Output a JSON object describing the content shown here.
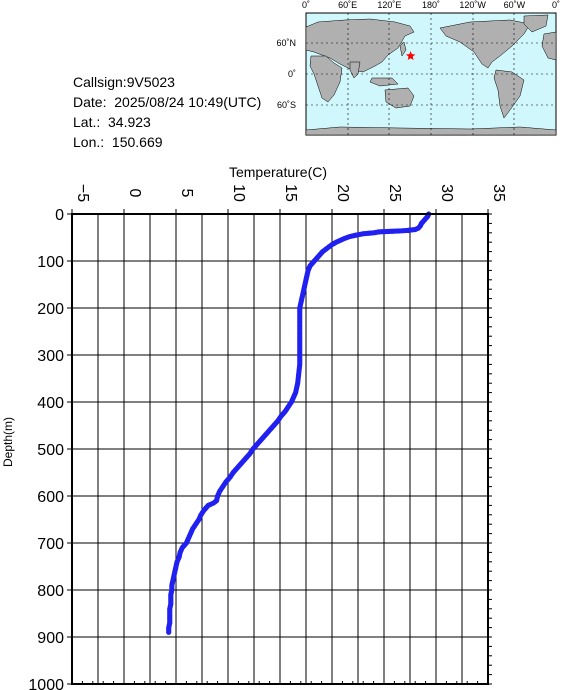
{
  "header": {
    "callsign": "Callsign:9V5023",
    "date": "Date:  2025/08/24 10:49(UTC)",
    "lat": "Lat.:  34.923",
    "lon": "Lon.:  150.669"
  },
  "map": {
    "lon_labels": [
      "0˚",
      "60˚E",
      "120˚E",
      "180˚",
      "120˚W",
      "60˚W",
      "0˚"
    ],
    "lat_labels": [
      "60˚N",
      "0˚",
      "60˚S"
    ],
    "station": {
      "lat": 34.923,
      "lon": 150.669
    },
    "colors": {
      "ocean": "#d0f7fb",
      "land": "#b0b0b0",
      "marker": "#ff0000"
    }
  },
  "chart_data": {
    "type": "scatter",
    "xlabel": "Temperature(C)",
    "ylabel": "Depth(m)",
    "xlim": [
      -5,
      35
    ],
    "ylim": [
      1000,
      0
    ],
    "x_ticks": [
      "-5",
      "0",
      "5",
      "10",
      "15",
      "20",
      "25",
      "30",
      "35"
    ],
    "y_ticks": [
      "0",
      "100",
      "200",
      "300",
      "400",
      "500",
      "600",
      "700",
      "800",
      "900",
      "1000"
    ],
    "grid": true,
    "color": "#2020f0",
    "series": [
      {
        "points": [
          [
            29.3,
            0
          ],
          [
            29.2,
            5
          ],
          [
            29.0,
            10
          ],
          [
            28.8,
            15
          ],
          [
            28.6,
            20
          ],
          [
            28.5,
            25
          ],
          [
            28.3,
            30
          ],
          [
            28.0,
            33
          ],
          [
            27.2,
            35
          ],
          [
            26.5,
            36
          ],
          [
            25.5,
            37
          ],
          [
            24.5,
            38
          ],
          [
            24.0,
            40
          ],
          [
            23.0,
            42
          ],
          [
            22.3,
            45
          ],
          [
            21.7,
            48
          ],
          [
            21.2,
            52
          ],
          [
            20.8,
            56
          ],
          [
            20.4,
            60
          ],
          [
            20.0,
            65
          ],
          [
            19.7,
            70
          ],
          [
            19.4,
            75
          ],
          [
            19.1,
            80
          ],
          [
            18.9,
            85
          ],
          [
            18.7,
            90
          ],
          [
            18.5,
            95
          ],
          [
            18.3,
            100
          ],
          [
            18.1,
            105
          ],
          [
            17.9,
            110
          ],
          [
            17.8,
            115
          ],
          [
            17.7,
            120
          ],
          [
            17.6,
            130
          ],
          [
            17.5,
            140
          ],
          [
            17.4,
            150
          ],
          [
            17.3,
            160
          ],
          [
            17.2,
            170
          ],
          [
            17.1,
            180
          ],
          [
            17.0,
            190
          ],
          [
            16.9,
            200
          ],
          [
            16.9,
            220
          ],
          [
            16.9,
            240
          ],
          [
            16.9,
            260
          ],
          [
            16.9,
            280
          ],
          [
            16.9,
            300
          ],
          [
            16.9,
            320
          ],
          [
            16.8,
            340
          ],
          [
            16.7,
            360
          ],
          [
            16.5,
            380
          ],
          [
            16.3,
            390
          ],
          [
            16.1,
            400
          ],
          [
            15.8,
            410
          ],
          [
            15.5,
            420
          ],
          [
            15.1,
            430
          ],
          [
            14.8,
            440
          ],
          [
            14.4,
            450
          ],
          [
            14.0,
            460
          ],
          [
            13.6,
            470
          ],
          [
            13.2,
            480
          ],
          [
            12.8,
            490
          ],
          [
            12.4,
            500
          ],
          [
            12.1,
            510
          ],
          [
            11.7,
            520
          ],
          [
            11.3,
            530
          ],
          [
            10.9,
            540
          ],
          [
            10.5,
            550
          ],
          [
            10.2,
            560
          ],
          [
            9.8,
            570
          ],
          [
            9.5,
            580
          ],
          [
            9.2,
            590
          ],
          [
            9.0,
            600
          ],
          [
            8.9,
            610
          ],
          [
            8.6,
            615
          ],
          [
            8.1,
            620
          ],
          [
            7.7,
            630
          ],
          [
            7.4,
            640
          ],
          [
            7.2,
            650
          ],
          [
            6.9,
            660
          ],
          [
            6.6,
            670
          ],
          [
            6.4,
            680
          ],
          [
            6.2,
            690
          ],
          [
            6.0,
            700
          ],
          [
            5.6,
            710
          ],
          [
            5.4,
            720
          ],
          [
            5.3,
            730
          ],
          [
            5.1,
            740
          ],
          [
            5.0,
            750
          ],
          [
            4.9,
            760
          ],
          [
            4.8,
            770
          ],
          [
            4.7,
            780
          ],
          [
            4.6,
            790
          ],
          [
            4.6,
            800
          ],
          [
            4.5,
            810
          ],
          [
            4.5,
            820
          ],
          [
            4.5,
            830
          ],
          [
            4.4,
            840
          ],
          [
            4.4,
            850
          ],
          [
            4.4,
            860
          ],
          [
            4.4,
            870
          ],
          [
            4.3,
            880
          ],
          [
            4.3,
            890
          ]
        ]
      }
    ],
    "isolated_points": [
      [
        25.7,
        36
      ],
      [
        27.4,
        36
      ]
    ]
  }
}
